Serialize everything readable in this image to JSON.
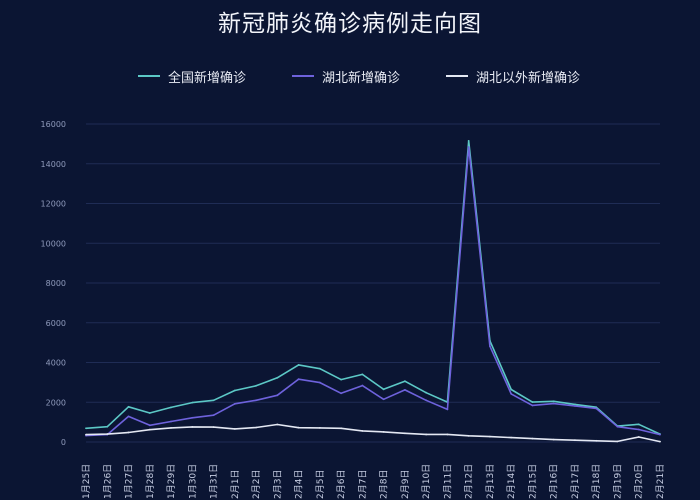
{
  "chart_data": {
    "type": "line",
    "title": "新冠肺炎确诊病例走向图",
    "categories": [
      "1月25日",
      "1月26日",
      "1月27日",
      "1月28日",
      "1月29日",
      "1月30日",
      "1月31日",
      "2月1日",
      "2月2日",
      "2月3日",
      "2月4日",
      "2月5日",
      "2月6日",
      "2月7日",
      "2月8日",
      "2月9日",
      "2月10日",
      "2月11日",
      "2月12日",
      "2月13日",
      "2月14日",
      "2月15日",
      "2月16日",
      "2月17日",
      "2月18日",
      "2月19日",
      "2月20日",
      "2月21日"
    ],
    "ylim": [
      0,
      16000
    ],
    "yticks": [
      0,
      2000,
      4000,
      6000,
      8000,
      10000,
      12000,
      14000,
      16000
    ],
    "grid": true,
    "legend_position": "top",
    "series": [
      {
        "name": "全国新增确诊",
        "color": "#5cc8c6",
        "values": [
          690,
          770,
          1770,
          1460,
          1740,
          1980,
          2100,
          2590,
          2830,
          3230,
          3880,
          3690,
          3140,
          3400,
          2650,
          3060,
          2480,
          2010,
          15150,
          5090,
          2640,
          2010,
          2050,
          1890,
          1750,
          800,
          890,
          400
        ]
      },
      {
        "name": "湖北新增确诊",
        "color": "#6e62dc",
        "values": [
          320,
          370,
          1290,
          840,
          1030,
          1220,
          1350,
          1920,
          2100,
          2350,
          3160,
          2990,
          2450,
          2840,
          2150,
          2620,
          2100,
          1640,
          14840,
          4820,
          2420,
          1840,
          1930,
          1810,
          1690,
          770,
          630,
          370
        ]
      },
      {
        "name": "湖北以外新增确诊",
        "color": "#e4e8f3",
        "values": [
          370,
          400,
          480,
          620,
          710,
          760,
          750,
          660,
          730,
          880,
          720,
          710,
          690,
          560,
          510,
          440,
          380,
          380,
          310,
          270,
          220,
          170,
          120,
          90,
          60,
          30,
          250,
          20
        ]
      }
    ]
  }
}
